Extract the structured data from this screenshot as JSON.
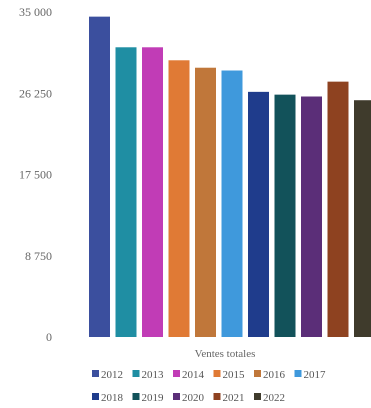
{
  "chart_data": {
    "type": "bar",
    "title": "",
    "xlabel": "Ventes totales",
    "ylabel": "",
    "ylim": [
      0,
      35000
    ],
    "y_ticks": [
      "0",
      "8 750",
      "17 500",
      "26 250",
      "35 000"
    ],
    "y_tick_values": [
      0,
      8750,
      17500,
      26250,
      35000
    ],
    "grid": false,
    "legend_position": "bottom",
    "series": [
      {
        "name": "2012",
        "value": 34500,
        "color": "#3b4f9e"
      },
      {
        "name": "2013",
        "value": 31200,
        "color": "#1f8ea3"
      },
      {
        "name": "2014",
        "value": 31200,
        "color": "#c13cb6"
      },
      {
        "name": "2015",
        "value": 29800,
        "color": "#e07a35"
      },
      {
        "name": "2016",
        "value": 29000,
        "color": "#c0773a"
      },
      {
        "name": "2017",
        "value": 28700,
        "color": "#3f99dc"
      },
      {
        "name": "2018",
        "value": 26400,
        "color": "#1f3c8c"
      },
      {
        "name": "2019",
        "value": 26100,
        "color": "#12525a"
      },
      {
        "name": "2020",
        "value": 25900,
        "color": "#5b2e78"
      },
      {
        "name": "2021",
        "value": 27500,
        "color": "#8e4220"
      },
      {
        "name": "2022",
        "value": 25500,
        "color": "#3f3b2c"
      }
    ]
  }
}
